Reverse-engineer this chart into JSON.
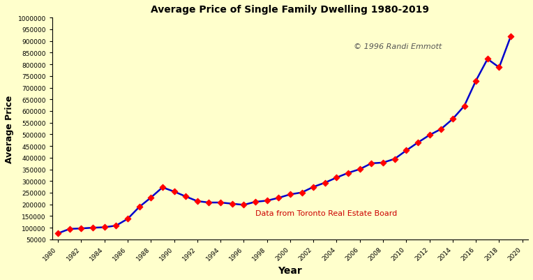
{
  "title": "Average Price of Single Family Dwelling 1980-2019",
  "xlabel": "Year",
  "ylabel": "Average Price",
  "annotation1": "© 1996 Randi Emmott",
  "annotation2": "Data from Toronto Real Estate Board",
  "annotation1_color": "#555555",
  "annotation2_color": "#CC0000",
  "line_color": "#0000CC",
  "marker_color": "#FF0000",
  "background_color": "#FFFFCC",
  "years": [
    1980,
    1981,
    1982,
    1983,
    1984,
    1985,
    1986,
    1987,
    1988,
    1989,
    1990,
    1991,
    1992,
    1993,
    1994,
    1995,
    1996,
    1997,
    1998,
    1999,
    2000,
    2001,
    2002,
    2003,
    2004,
    2005,
    2006,
    2007,
    2008,
    2009,
    2010,
    2011,
    2012,
    2013,
    2014,
    2015,
    2016,
    2017,
    2018,
    2019
  ],
  "prices": [
    76000,
    95000,
    97000,
    100000,
    102000,
    109000,
    138000,
    189000,
    229000,
    273000,
    255000,
    234000,
    214000,
    208000,
    208000,
    203000,
    198000,
    211000,
    216000,
    228000,
    243000,
    251000,
    275000,
    293000,
    315000,
    335000,
    351000,
    376000,
    379000,
    395000,
    431000,
    465000,
    497000,
    523000,
    566000,
    622000,
    730000,
    823000,
    787000,
    920000
  ],
  "ylim": [
    50000,
    1000000
  ],
  "yticks": [
    50000,
    100000,
    150000,
    200000,
    250000,
    300000,
    350000,
    400000,
    450000,
    500000,
    550000,
    600000,
    650000,
    700000,
    750000,
    800000,
    850000,
    900000,
    950000,
    1000000
  ],
  "xticks": [
    1980,
    1982,
    1984,
    1986,
    1988,
    1990,
    1992,
    1994,
    1996,
    1998,
    2000,
    2002,
    2004,
    2006,
    2008,
    2010,
    2012,
    2014,
    2016,
    2018,
    2020
  ],
  "xlim": [
    1979.5,
    2020.5
  ],
  "ann1_x": 2005.5,
  "ann1_y": 870000,
  "ann2_x": 1997,
  "ann2_y": 155000
}
